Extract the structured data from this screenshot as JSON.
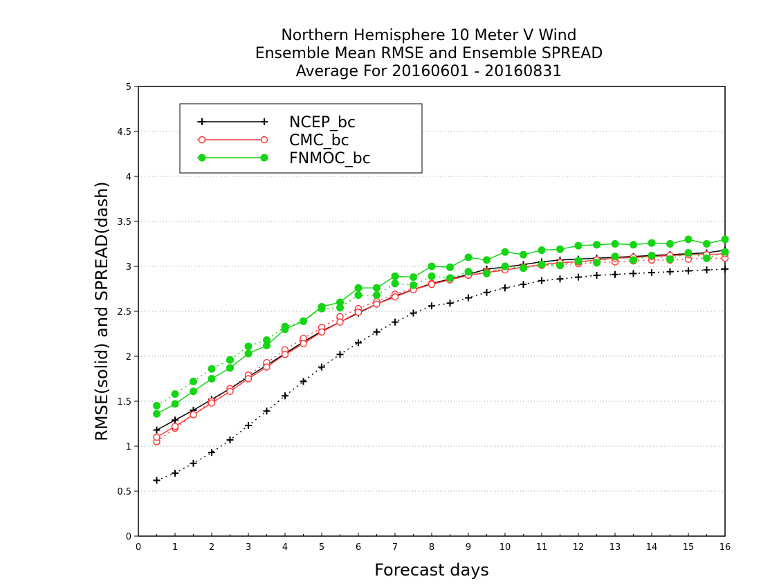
{
  "chart_data": {
    "type": "line",
    "title_lines": [
      "Northern Hemisphere 10 Meter V Wind",
      "Ensemble Mean RMSE and Ensemble SPREAD",
      "Average For 20160601 - 20160831"
    ],
    "xlabel": "Forecast days",
    "ylabel": "RMSE(solid) and SPREAD(dash)",
    "xlim": [
      0,
      16
    ],
    "ylim": [
      0,
      5
    ],
    "x_ticks": [
      0,
      1,
      2,
      3,
      4,
      5,
      6,
      7,
      8,
      9,
      10,
      11,
      12,
      13,
      14,
      15,
      16
    ],
    "y_ticks": [
      0,
      0.5,
      1,
      1.5,
      2,
      2.5,
      3,
      3.5,
      4,
      4.5,
      5
    ],
    "y_tick_labels": [
      "0",
      "0.5",
      "1",
      "1.5",
      "2",
      "2.5",
      "3",
      "3.5",
      "4",
      "4.5",
      "5"
    ],
    "grid": "horizontal dotted",
    "legend_position": "top-left",
    "x": [
      0.5,
      1,
      1.5,
      2,
      2.5,
      3,
      3.5,
      4,
      4.5,
      5,
      5.5,
      6,
      6.5,
      7,
      7.5,
      8,
      8.5,
      9,
      9.5,
      10,
      10.5,
      11,
      11.5,
      12,
      12.5,
      13,
      13.5,
      14,
      14.5,
      15,
      15.5,
      16
    ],
    "series": [
      {
        "name": "NCEP_bc",
        "color": "#000000",
        "marker": "plus",
        "rmse": [
          1.18,
          1.29,
          1.4,
          1.52,
          1.64,
          1.77,
          1.9,
          2.03,
          2.16,
          2.28,
          2.38,
          2.48,
          2.58,
          2.67,
          2.74,
          2.81,
          2.86,
          2.91,
          2.97,
          2.99,
          3.02,
          3.05,
          3.07,
          3.08,
          3.09,
          3.1,
          3.11,
          3.12,
          3.13,
          3.14,
          3.15,
          3.18
        ],
        "spread": [
          0.62,
          0.7,
          0.81,
          0.93,
          1.07,
          1.23,
          1.39,
          1.56,
          1.72,
          1.88,
          2.02,
          2.15,
          2.27,
          2.38,
          2.48,
          2.56,
          2.59,
          2.65,
          2.71,
          2.76,
          2.8,
          2.84,
          2.86,
          2.88,
          2.9,
          2.91,
          2.92,
          2.93,
          2.94,
          2.95,
          2.96,
          2.97
        ]
      },
      {
        "name": "CMC_bc",
        "color": "#ff3b3b",
        "marker": "open-circle",
        "rmse": [
          1.1,
          1.22,
          1.35,
          1.48,
          1.61,
          1.75,
          1.88,
          2.02,
          2.14,
          2.27,
          2.38,
          2.49,
          2.58,
          2.66,
          2.74,
          2.8,
          2.85,
          2.9,
          2.93,
          2.96,
          2.99,
          3.02,
          3.04,
          3.05,
          3.07,
          3.09,
          3.1,
          3.11,
          3.12,
          3.13,
          3.13,
          3.14
        ],
        "spread": [
          1.05,
          1.2,
          1.35,
          1.5,
          1.64,
          1.79,
          1.93,
          2.07,
          2.2,
          2.32,
          2.44,
          2.53,
          2.61,
          2.69,
          2.75,
          2.81,
          2.86,
          2.9,
          2.94,
          2.97,
          2.99,
          3.01,
          3.02,
          3.03,
          3.04,
          3.05,
          3.06,
          3.07,
          3.07,
          3.08,
          3.09,
          3.09
        ]
      },
      {
        "name": "FNMOC_bc",
        "color": "#14d614",
        "marker": "filled-circle",
        "rmse": [
          1.36,
          1.47,
          1.61,
          1.75,
          1.87,
          2.03,
          2.12,
          2.3,
          2.39,
          2.55,
          2.6,
          2.76,
          2.76,
          2.89,
          2.88,
          3.0,
          2.99,
          3.1,
          3.07,
          3.16,
          3.13,
          3.18,
          3.19,
          3.23,
          3.24,
          3.25,
          3.24,
          3.26,
          3.25,
          3.3,
          3.25,
          3.3
        ],
        "spread": [
          1.45,
          1.58,
          1.72,
          1.86,
          1.96,
          2.11,
          2.18,
          2.33,
          2.39,
          2.53,
          2.54,
          2.68,
          2.68,
          2.81,
          2.79,
          2.89,
          2.87,
          2.94,
          2.92,
          3.0,
          2.98,
          3.02,
          3.01,
          3.06,
          3.04,
          3.11,
          3.07,
          3.12,
          3.08,
          3.15,
          3.09,
          3.16
        ]
      }
    ]
  }
}
